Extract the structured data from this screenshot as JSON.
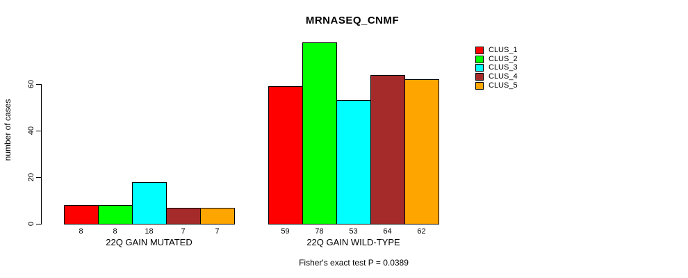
{
  "chart_data": {
    "type": "bar",
    "title": "MRNASEQ_CNMF",
    "ylabel": "number of cases",
    "xlabel": "",
    "ylim": [
      0,
      80
    ],
    "y_ticks": [
      0,
      20,
      40,
      60
    ],
    "grid": false,
    "legend_position": "right",
    "categories": [
      "22Q GAIN MUTATED",
      "22Q GAIN WILD-TYPE"
    ],
    "series": [
      {
        "name": "CLUS_1",
        "color": "#FF0000",
        "values": [
          8,
          59
        ]
      },
      {
        "name": "CLUS_2",
        "color": "#00FF00",
        "values": [
          8,
          78
        ]
      },
      {
        "name": "CLUS_3",
        "color": "#00FFFF",
        "values": [
          18,
          53
        ]
      },
      {
        "name": "CLUS_4",
        "color": "#A52A2A",
        "values": [
          7,
          64
        ]
      },
      {
        "name": "CLUS_5",
        "color": "#FFA500",
        "values": [
          7,
          62
        ]
      }
    ],
    "bar_value_labels": [
      [
        8,
        8,
        18,
        7,
        7
      ],
      [
        59,
        78,
        53,
        64,
        62
      ]
    ],
    "annotation": "Fisher's exact test P = 0.0389"
  }
}
